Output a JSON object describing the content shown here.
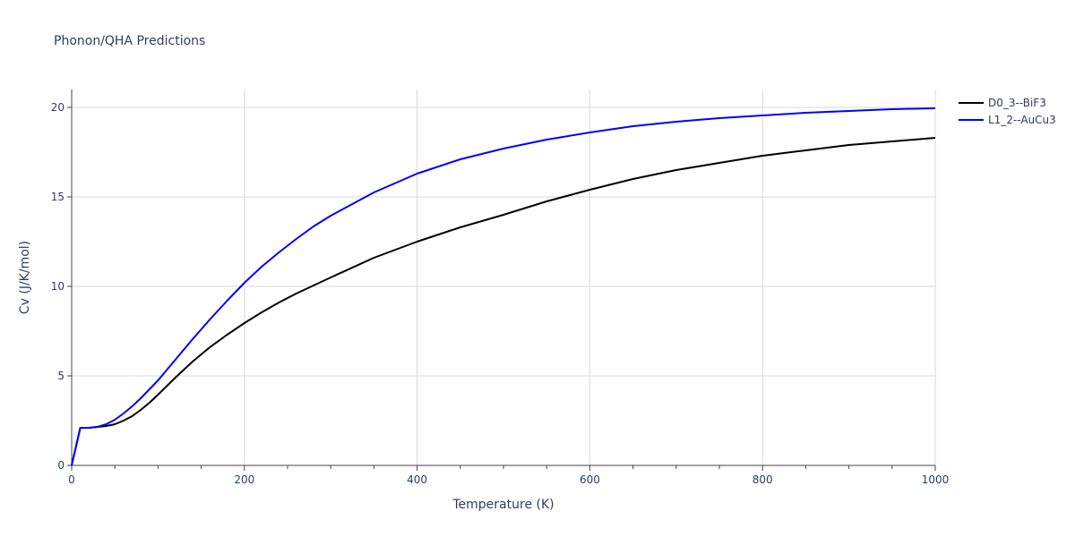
{
  "chart_data": {
    "type": "line",
    "title": "Phonon/QHA Predictions",
    "xlabel": "Temperature (K)",
    "ylabel": "Cv (J/K/mol)",
    "xlim": [
      0,
      1000
    ],
    "ylim": [
      0,
      21
    ],
    "xticks": [
      0,
      200,
      400,
      600,
      800,
      1000
    ],
    "yticks": [
      0,
      5,
      10,
      15,
      20
    ],
    "x_minor_step": 50,
    "grid": true,
    "legend_position": "top-right",
    "series": [
      {
        "name": "D0_3--BiF3",
        "color": "#000000",
        "x": [
          0,
          10,
          20,
          30,
          40,
          50,
          60,
          70,
          80,
          90,
          100,
          120,
          140,
          160,
          180,
          200,
          220,
          240,
          260,
          280,
          300,
          350,
          400,
          450,
          500,
          550,
          600,
          650,
          700,
          750,
          800,
          850,
          900,
          950,
          1000
        ],
        "y": [
          0,
          2.1,
          2.1,
          2.15,
          2.2,
          2.3,
          2.5,
          2.75,
          3.1,
          3.5,
          3.95,
          4.9,
          5.8,
          6.6,
          7.3,
          7.95,
          8.55,
          9.1,
          9.6,
          10.05,
          10.5,
          11.6,
          12.5,
          13.3,
          14.0,
          14.75,
          15.4,
          16.0,
          16.5,
          16.9,
          17.3,
          17.6,
          17.9,
          18.1,
          18.3
        ]
      },
      {
        "name": "L1_2--AuCu3",
        "color": "#0000ff",
        "x": [
          0,
          10,
          20,
          30,
          40,
          50,
          60,
          70,
          80,
          90,
          100,
          120,
          140,
          160,
          180,
          200,
          220,
          240,
          260,
          280,
          300,
          350,
          400,
          450,
          500,
          550,
          600,
          650,
          700,
          750,
          800,
          850,
          900,
          950,
          1000
        ],
        "y": [
          0,
          2.1,
          2.1,
          2.15,
          2.3,
          2.55,
          2.9,
          3.3,
          3.75,
          4.25,
          4.75,
          5.9,
          7.05,
          8.15,
          9.2,
          10.2,
          11.1,
          11.9,
          12.65,
          13.35,
          13.95,
          15.25,
          16.3,
          17.1,
          17.7,
          18.2,
          18.6,
          18.95,
          19.2,
          19.4,
          19.55,
          19.7,
          19.8,
          19.9,
          19.95
        ]
      }
    ]
  }
}
